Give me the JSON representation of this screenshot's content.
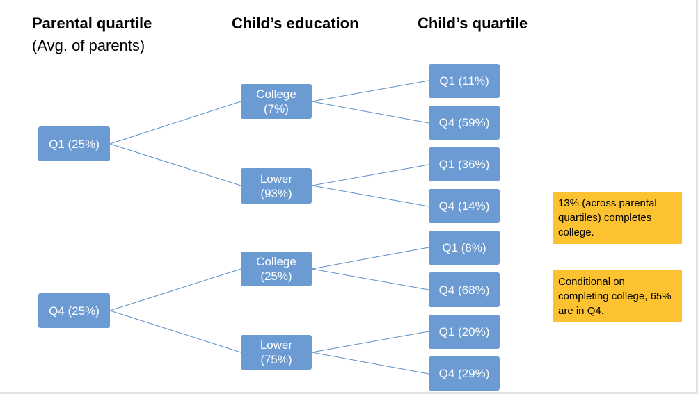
{
  "headers": {
    "parental": "Parental quartile",
    "parental_sub": "(Avg. of parents)",
    "education": "Child’s education",
    "child": "Child’s quartile"
  },
  "nodes": {
    "p_q1": "Q1 (25%)",
    "p_q4": "Q4 (25%)",
    "e1": "College\n(7%)",
    "e2": "Lower\n(93%)",
    "e3": "College\n(25%)",
    "e4": "Lower\n(75%)",
    "c1": "Q1 (11%)",
    "c2": "Q4 (59%)",
    "c3": "Q1 (36%)",
    "c4": "Q4 (14%)",
    "c5": "Q1 (8%)",
    "c6": "Q4 (68%)",
    "c7": "Q1 (20%)",
    "c8": "Q4 (29%)"
  },
  "notes": {
    "note1": "13% (across parental quartiles) completes college.",
    "note2": "Conditional on completing college, 65% are in Q4."
  },
  "colors": {
    "node_fill": "#6b9bd2",
    "note_fill": "#fdc230",
    "connector": "#5b8fc7"
  }
}
